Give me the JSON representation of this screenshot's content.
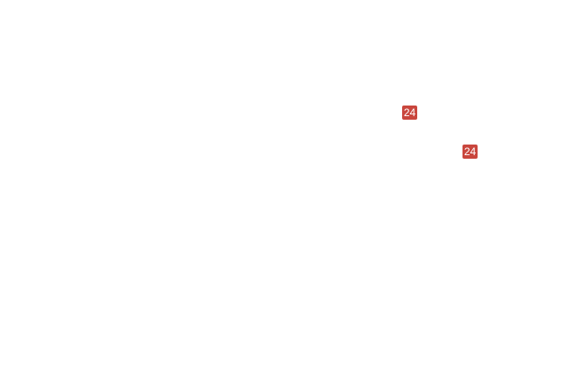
{
  "page": {
    "background_color": "#ffffff"
  },
  "badges": [
    {
      "label": "24",
      "background_color": "#c9463d",
      "text_color": "#ffffff"
    },
    {
      "label": "24",
      "background_color": "#c9463d",
      "text_color": "#ffffff"
    }
  ]
}
